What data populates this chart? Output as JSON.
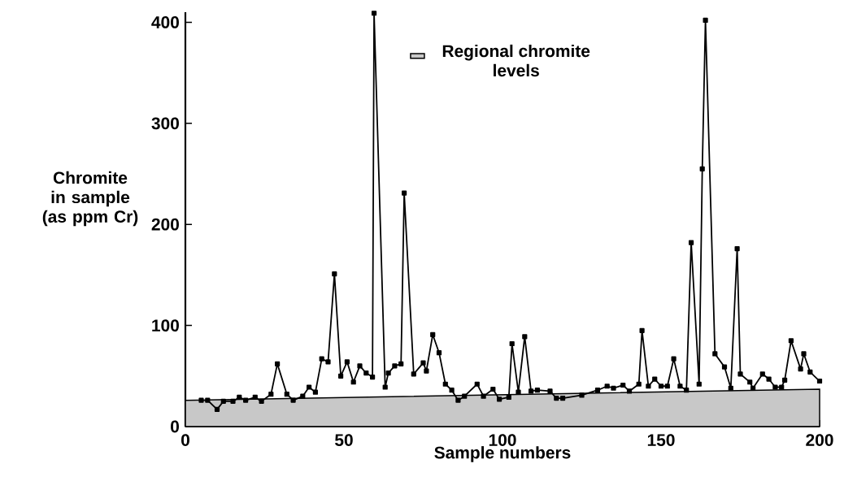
{
  "chart_data": {
    "type": "line",
    "xlabel": "Sample numbers",
    "ylabel": "Chromite in sample (as ppm Cr)",
    "xlim": [
      0,
      200
    ],
    "ylim": [
      0,
      410
    ],
    "xticks": [
      0,
      50,
      100,
      150,
      200
    ],
    "yticks": [
      0,
      100,
      200,
      300,
      400
    ],
    "line_style": "solid",
    "legend": "top",
    "grid": false,
    "series": [
      {
        "name": "Regional chromite levels",
        "type": "area",
        "color": "#c8c8c8",
        "x": [
          0,
          200
        ],
        "values": [
          26,
          37
        ]
      },
      {
        "marker": "square",
        "color": "#000000",
        "x": [
          5,
          7,
          10,
          12,
          15,
          17,
          19,
          22,
          24,
          27,
          29,
          32,
          34,
          37,
          39,
          41,
          43,
          45,
          47,
          49,
          51,
          53,
          55,
          57,
          59,
          59.5,
          63,
          64,
          66,
          68,
          69,
          72,
          75,
          76,
          78,
          80,
          82,
          84,
          86,
          88,
          92,
          94,
          97,
          99,
          102,
          103,
          105,
          107,
          109,
          111,
          115,
          117,
          119,
          125,
          130,
          133,
          135,
          138,
          140,
          143,
          144,
          146,
          148,
          150,
          152,
          154,
          156,
          158,
          159.5,
          162,
          163,
          164,
          167,
          170,
          172,
          174,
          175,
          178,
          179,
          182,
          184,
          186,
          188,
          189,
          191,
          194,
          195,
          197,
          200
        ],
        "values": [
          26,
          26,
          17,
          25,
          25,
          29,
          26,
          29,
          25,
          32,
          62,
          32,
          26,
          30,
          39,
          34,
          67,
          64,
          151,
          50,
          64,
          44,
          60,
          53,
          49,
          409,
          39,
          53,
          60,
          62,
          231,
          52,
          63,
          55,
          91,
          73,
          42,
          36,
          26,
          30,
          42,
          30,
          37,
          27,
          29,
          82,
          34,
          89,
          35,
          36,
          35,
          28,
          28,
          31,
          36,
          40,
          38,
          41,
          35,
          42,
          95,
          40,
          47,
          40,
          40,
          67,
          40,
          36,
          182,
          42,
          255,
          402,
          72,
          59,
          38,
          176,
          52,
          44,
          38,
          52,
          47,
          39,
          39,
          46,
          85,
          57,
          72,
          54,
          45
        ]
      }
    ]
  }
}
